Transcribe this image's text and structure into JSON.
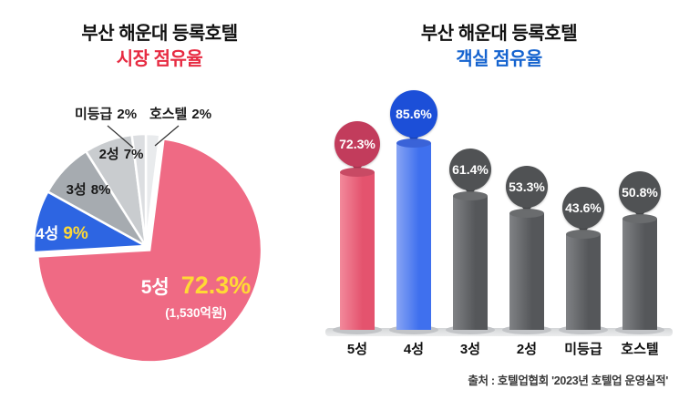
{
  "left_chart": {
    "title": "부산 해운대 등록호텔",
    "subtitle": "시장 점유율",
    "subtitle_color": "#e72b42",
    "labels": {
      "five": {
        "name": "5성",
        "value": "72.3%",
        "note": "(1,530억원)"
      },
      "four": {
        "name": "4성",
        "value": "9%"
      },
      "three": {
        "name": "3성",
        "value": "8%"
      },
      "two": {
        "name": "2성",
        "value": "7%"
      },
      "nograde": {
        "name": "미등급",
        "value": "2%"
      },
      "hostel": {
        "name": "호스텔",
        "value": "2%"
      }
    }
  },
  "right_chart": {
    "title": "부산 해운대 등록호텔",
    "subtitle": "객실 점유율",
    "subtitle_color": "#1563cf"
  },
  "source": "출처 : 호텔업협회 '2023년 호텔업 운영실적'",
  "colors": {
    "highlight_yellow": "#ffd935",
    "pie_pink": "#ef6a84",
    "pie_blue": "#2d65e2",
    "bar_red_bubble": "#c23c5c",
    "bar_blue_bubble": "#1c4fd8",
    "bar_gray_bubble": "#505254"
  },
  "bar_chart": {
    "column_styles": [
      {
        "bubble": "#c23c5c",
        "size": 50,
        "top": "#c84a64",
        "bar": "#e4536e",
        "bar_light": "#f2899b"
      },
      {
        "bubble": "#1c4fd8",
        "size": 52,
        "top": "#3a63d8",
        "bar": "#3f70ee",
        "bar_light": "#87a4f4"
      },
      {
        "bubble": "#505254",
        "size": 46,
        "top": "#6a6c6e",
        "bar": "#55575a",
        "bar_light": "#808285"
      },
      {
        "bubble": "#505254",
        "size": 46,
        "top": "#6a6c6e",
        "bar": "#55575a",
        "bar_light": "#808285"
      },
      {
        "bubble": "#505254",
        "size": 46,
        "top": "#6a6c6e",
        "bar": "#55575a",
        "bar_light": "#808285"
      },
      {
        "bubble": "#505254",
        "size": 46,
        "top": "#6a6c6e",
        "bar": "#55575a",
        "bar_light": "#808285"
      }
    ]
  },
  "chart_data": [
    {
      "type": "pie",
      "title": "부산 해운대 등록호텔",
      "subtitle": "시장 점유율",
      "unit": "%",
      "start_angle_clockwise_from_top": 0,
      "slices": [
        {
          "label": "호스텔",
          "value": 2,
          "color": "#e9ebed"
        },
        {
          "label": "5성",
          "value": 72.3,
          "color": "#ef6a84",
          "note": "1,530억원",
          "explode": 6
        },
        {
          "label": "4성",
          "value": 9,
          "color": "#2d65e2"
        },
        {
          "label": "3성",
          "value": 8,
          "color": "#a6abb0"
        },
        {
          "label": "2성",
          "value": 7,
          "color": "#c9cccf"
        },
        {
          "label": "미등급",
          "value": 2,
          "color": "#dcdee1"
        }
      ]
    },
    {
      "type": "bar",
      "title": "부산 해운대 등록호텔",
      "subtitle": "객실 점유율",
      "categories": [
        "5성",
        "4성",
        "3성",
        "2성",
        "미등급",
        "호스텔"
      ],
      "values": [
        72.3,
        85.6,
        61.4,
        53.3,
        43.6,
        50.8
      ],
      "unit": "%",
      "ylim": [
        0,
        100
      ],
      "legend": false,
      "grid": false
    }
  ]
}
